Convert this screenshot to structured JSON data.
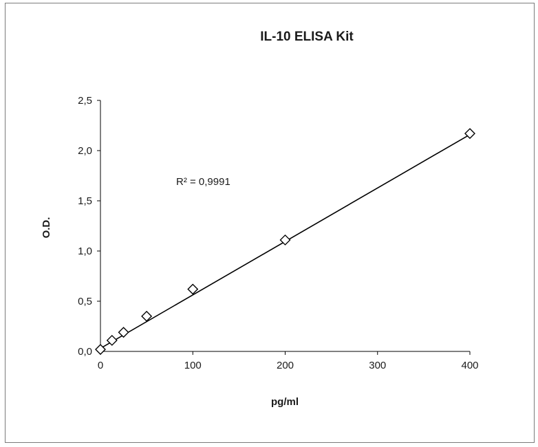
{
  "chart_data": {
    "type": "scatter",
    "title": "IL-10 ELISA Kit",
    "xlabel": "pg/ml",
    "ylabel": "O.D.",
    "xlim": [
      0,
      400
    ],
    "ylim": [
      0,
      2.5
    ],
    "x_ticks": [
      0,
      100,
      200,
      300,
      400
    ],
    "y_ticks": [
      0,
      0.5,
      1.0,
      1.5,
      2.0,
      2.5
    ],
    "x_tick_labels": [
      "0",
      "100",
      "200",
      "300",
      "400"
    ],
    "y_tick_labels": [
      "0,0",
      "0,5",
      "1,0",
      "1,5",
      "2,0",
      "2,5"
    ],
    "grid": false,
    "legend": "none",
    "marker": "diamond-open",
    "series": [
      {
        "x": [
          0,
          12.5,
          25,
          50,
          100,
          200,
          400
        ],
        "y": [
          0.02,
          0.11,
          0.19,
          0.35,
          0.62,
          1.11,
          2.17
        ]
      }
    ],
    "trendline": {
      "type": "linear",
      "x": [
        0,
        400
      ],
      "y": [
        0.03,
        2.16
      ]
    },
    "annotations": [
      {
        "text": "R² = 0,9991"
      }
    ],
    "colors": {
      "axis": "#000000",
      "marker": "#000000",
      "line": "#000000"
    }
  }
}
